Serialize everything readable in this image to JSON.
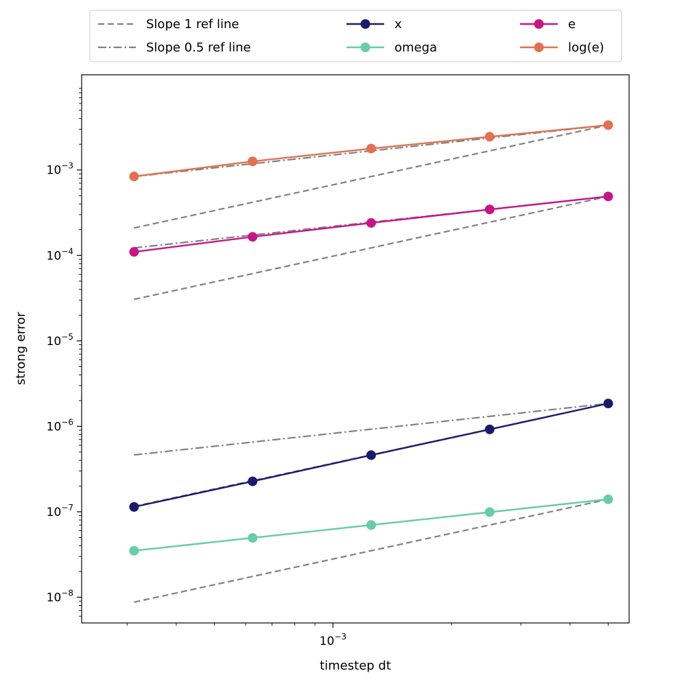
{
  "chart_data": {
    "type": "line",
    "xscale": "log",
    "yscale": "log",
    "xlabel": "timestep dt",
    "ylabel": "strong error",
    "xlim": [
      0.00023,
      0.00565
    ],
    "ylim": [
      5e-09,
      0.013
    ],
    "grid": false,
    "legend_position": "top-center, above plot",
    "x_ticks": [
      {
        "value": 0.001,
        "base": "10",
        "exp": "−3"
      }
    ],
    "y_ticks": [
      {
        "value": 1e-08,
        "base": "10",
        "exp": "−8"
      },
      {
        "value": 1e-07,
        "base": "10",
        "exp": "−7"
      },
      {
        "value": 1e-06,
        "base": "10",
        "exp": "−6"
      },
      {
        "value": 1e-05,
        "base": "10",
        "exp": "−5"
      },
      {
        "value": 0.0001,
        "base": "10",
        "exp": "−4"
      },
      {
        "value": 0.001,
        "base": "10",
        "exp": "−3"
      }
    ],
    "x": [
      0.0003125,
      0.000625,
      0.00125,
      0.0025,
      0.005
    ],
    "series": [
      {
        "name": "x",
        "color": "#1b1b6e",
        "values": [
          1.14e-07,
          2.27e-07,
          4.6e-07,
          9.2e-07,
          1.85e-06
        ]
      },
      {
        "name": "omega",
        "color": "#66cdaa",
        "values": [
          3.5e-08,
          4.95e-08,
          7e-08,
          9.9e-08,
          1.4e-07
        ]
      },
      {
        "name": "e",
        "color": "#c71585",
        "values": [
          0.00011,
          0.000165,
          0.00024,
          0.000345,
          0.00049
        ]
      },
      {
        "name": "log(e)",
        "color": "#e2714f",
        "values": [
          0.00084,
          0.00126,
          0.00178,
          0.00245,
          0.00335
        ]
      }
    ],
    "reference_lines": [
      {
        "label": "Slope 1 ref line",
        "style": "dashed",
        "slope": 1,
        "anchor": {
          "x": 0.005,
          "y": 0.00335
        }
      },
      {
        "label": "Slope 0.5 ref line",
        "style": "dashdot",
        "slope": 0.5,
        "anchor": {
          "x": 0.005,
          "y": 0.00335
        }
      },
      {
        "style": "dashed",
        "slope": 1,
        "anchor": {
          "x": 0.005,
          "y": 0.00049
        }
      },
      {
        "style": "dashdot",
        "slope": 0.5,
        "anchor": {
          "x": 0.005,
          "y": 0.00049
        }
      },
      {
        "style": "dashdot",
        "slope": 0.5,
        "anchor": {
          "x": 0.005,
          "y": 1.85e-06
        }
      },
      {
        "style": "dashed",
        "slope": 1,
        "anchor": {
          "x": 0.005,
          "y": 1.85e-06
        }
      },
      {
        "style": "dashed",
        "slope": 1,
        "anchor": {
          "x": 0.005,
          "y": 1.4e-07
        }
      },
      {
        "style": "dashdot",
        "slope": 0.5,
        "anchor": {
          "x": 0.005,
          "y": 1.4e-07
        }
      }
    ],
    "ref_line_color": "#808080",
    "legend": [
      {
        "label": "Slope 1 ref line",
        "kind": "dashed"
      },
      {
        "label": "Slope 0.5 ref line",
        "kind": "dashdot"
      },
      {
        "label": "x",
        "kind": "marker-line",
        "series": 0
      },
      {
        "label": "omega",
        "kind": "marker-line",
        "series": 1
      },
      {
        "label": "e",
        "kind": "marker-line",
        "series": 2
      },
      {
        "label": "log(e)",
        "kind": "marker-line",
        "series": 3
      }
    ]
  }
}
